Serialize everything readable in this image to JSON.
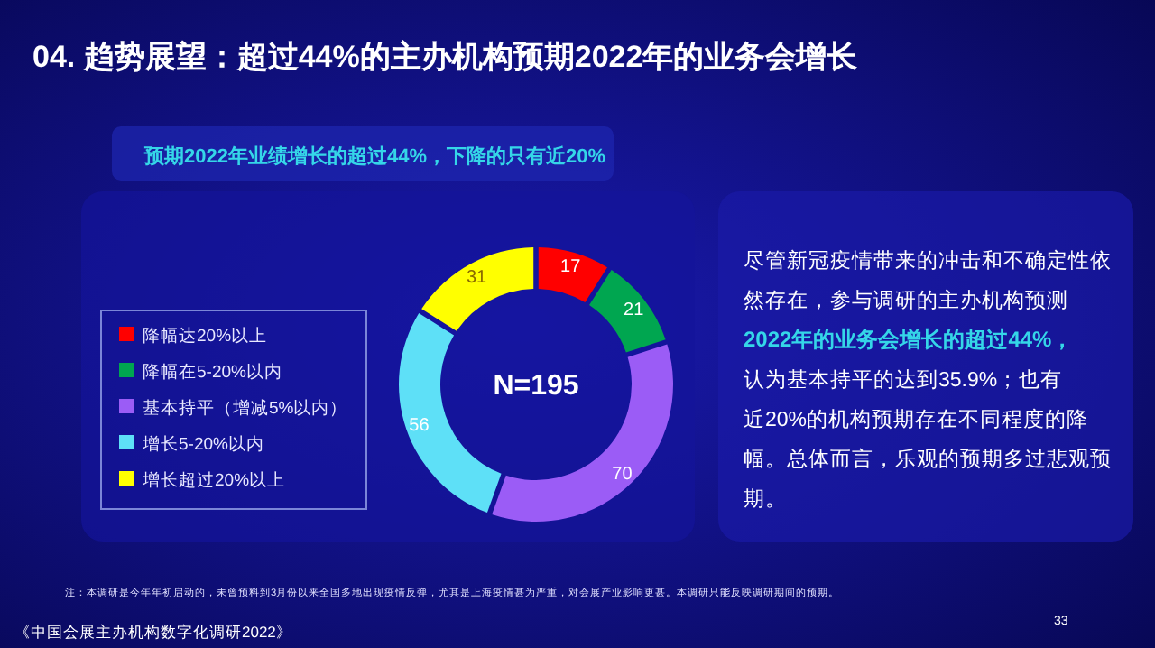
{
  "chart_data": {
    "type": "donut",
    "title": "04. 趋势展望：超过44%的主办机构预期2022年的业务会增长",
    "subtitle": "预期2022年业绩增长的超过44%，下降的只有近20%",
    "categories": [
      "降幅达20%以上",
      "降幅在5-20%以内",
      "基本持平（增减5%以内）",
      "增长5-20%以内",
      "增长超过20%以上"
    ],
    "values": [
      17,
      21,
      70,
      56,
      31
    ],
    "colors": [
      "#ff0000",
      "#00a650",
      "#9b5cf6",
      "#5ee0f7",
      "#ffff00"
    ],
    "data_labels": true,
    "legend": "left",
    "annotations": [
      "N=195",
      "尽管新冠疫情带来的冲击和不确定性依然存在，参与调研的主办机构预测",
      "2022年的业务会增长的超过44%，",
      "认为基本持平的达到35.9%；也有近20%的机构预期存在不同程度的降幅。总体而言，乐观的预期多过悲观预期。",
      "注：本调研是今年年初启动的，未曾预料到3月份以来全国多地出现疫情反弹，尤其是上海疫情甚为严重，对会展产业影响更甚。本调研只能反映调研期间的预期。",
      "《中国会展主办机构数字化调研2022》",
      "33"
    ]
  }
}
